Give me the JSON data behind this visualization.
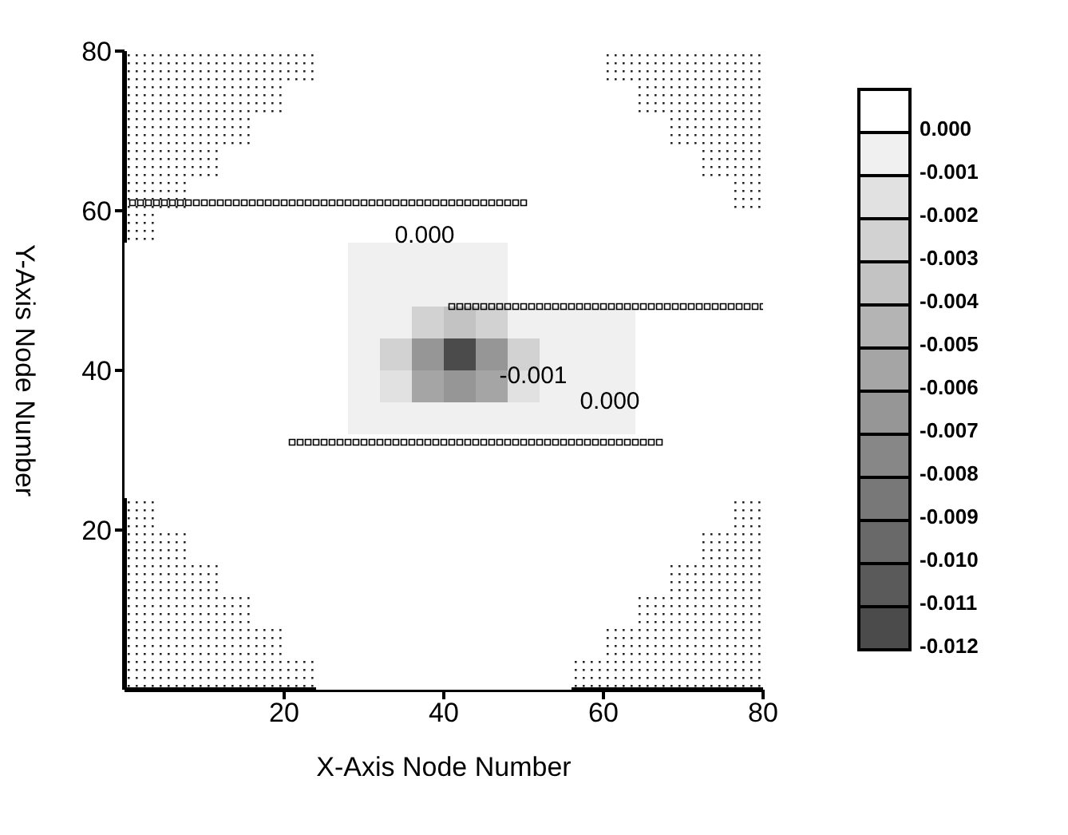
{
  "chart_data": {
    "type": "heatmap",
    "xlabel": "X-Axis Node Number",
    "ylabel": "Y-Axis Node Number",
    "xlim": [
      0,
      80
    ],
    "ylim": [
      0,
      80
    ],
    "xticks": [
      20,
      40,
      60,
      80
    ],
    "yticks": [
      20,
      40,
      60,
      80
    ],
    "clim": [
      -0.012,
      0.001
    ],
    "cticks": [
      {
        "value": 0,
        "label": "0.000"
      },
      {
        "value": -0.001,
        "label": "-0.001"
      },
      {
        "value": -0.002,
        "label": "-0.002"
      },
      {
        "value": -0.003,
        "label": "-0.003"
      },
      {
        "value": -0.004,
        "label": "-0.004"
      },
      {
        "value": -0.005,
        "label": "-0.005"
      },
      {
        "value": -0.006,
        "label": "-0.006"
      },
      {
        "value": -0.007,
        "label": "-0.007"
      },
      {
        "value": -0.008,
        "label": "-0.008"
      },
      {
        "value": -0.009,
        "label": "-0.009"
      },
      {
        "value": -0.01,
        "label": "-0.010"
      },
      {
        "value": -0.011,
        "label": "-0.011"
      },
      {
        "value": -0.012,
        "label": "-0.012"
      }
    ],
    "cells": [
      [
        null,
        null,
        null,
        null,
        null,
        null,
        0,
        0,
        0,
        0,
        0,
        0,
        0,
        0,
        0,
        null,
        null,
        null,
        null,
        null
      ],
      [
        null,
        null,
        null,
        null,
        null,
        0,
        0,
        0,
        0,
        0,
        0,
        0,
        0,
        0,
        0,
        0,
        null,
        null,
        null,
        null
      ],
      [
        null,
        null,
        null,
        null,
        0,
        0,
        0,
        0,
        0,
        0,
        0,
        0,
        0,
        0,
        0,
        0,
        0,
        null,
        null,
        null
      ],
      [
        null,
        null,
        null,
        0,
        0,
        0,
        0,
        0,
        0,
        0,
        0,
        0,
        0,
        0,
        0,
        0,
        0,
        0,
        null,
        null
      ],
      [
        null,
        null,
        0,
        0,
        0,
        0,
        0,
        0,
        0,
        0,
        0,
        0,
        0,
        0,
        0,
        0,
        0,
        0,
        0,
        null
      ],
      [
        null,
        0,
        0,
        0,
        0,
        0,
        0,
        0,
        0,
        0,
        0,
        0,
        0,
        0,
        0,
        0,
        0,
        0,
        0,
        0
      ],
      [
        0,
        0,
        0,
        0,
        0,
        0,
        0,
        -0.001,
        -0.001,
        -0.001,
        -0.001,
        -0.001,
        0,
        0,
        0,
        0,
        0,
        0,
        0,
        0
      ],
      [
        0,
        0,
        0,
        0,
        0,
        0,
        0,
        -0.001,
        -0.001,
        -0.001,
        -0.001,
        -0.001,
        0,
        0,
        0,
        0,
        0,
        0,
        0,
        0
      ],
      [
        0,
        0,
        0,
        0,
        0,
        0,
        0,
        -0.001,
        -0.001,
        -0.003,
        -0.004,
        -0.003,
        -0.001,
        -0.001,
        -0.001,
        -0.001,
        0,
        0,
        0,
        0
      ],
      [
        0,
        0,
        0,
        0,
        0,
        0,
        0,
        -0.001,
        -0.003,
        -0.007,
        -0.012,
        -0.007,
        -0.003,
        -0.001,
        -0.001,
        -0.001,
        0,
        0,
        0,
        0
      ],
      [
        0,
        0,
        0,
        0,
        0,
        0,
        0,
        -0.001,
        -0.002,
        -0.006,
        -0.007,
        -0.006,
        -0.002,
        -0.001,
        -0.001,
        -0.001,
        0,
        0,
        0,
        0
      ],
      [
        0,
        0,
        0,
        0,
        0,
        0,
        0,
        -0.001,
        -0.001,
        -0.001,
        -0.001,
        -0.001,
        -0.001,
        -0.001,
        -0.001,
        -0.001,
        0,
        0,
        0,
        0
      ],
      [
        0,
        0,
        0,
        0,
        0,
        0,
        0,
        0,
        0,
        0,
        0,
        0,
        0,
        0,
        0,
        0,
        0,
        0,
        0,
        0
      ],
      [
        0,
        0,
        0,
        0,
        0,
        0,
        0,
        0,
        0,
        0,
        0,
        0,
        0,
        0,
        0,
        0,
        0,
        0,
        0,
        0
      ],
      [
        null,
        0,
        0,
        0,
        0,
        0,
        0,
        0,
        0,
        0,
        0,
        0,
        0,
        0,
        0,
        0,
        0,
        0,
        0,
        null
      ],
      [
        null,
        null,
        0,
        0,
        0,
        0,
        0,
        0,
        0,
        0,
        0,
        0,
        0,
        0,
        0,
        0,
        0,
        0,
        null,
        null
      ],
      [
        null,
        null,
        null,
        0,
        0,
        0,
        0,
        0,
        0,
        0,
        0,
        0,
        0,
        0,
        0,
        0,
        0,
        null,
        null,
        null
      ],
      [
        null,
        null,
        null,
        null,
        0,
        0,
        0,
        0,
        0,
        0,
        0,
        0,
        0,
        0,
        0,
        0,
        null,
        null,
        null,
        null
      ],
      [
        null,
        null,
        null,
        null,
        null,
        0,
        0,
        0,
        0,
        0,
        0,
        0,
        0,
        0,
        0,
        null,
        null,
        null,
        null,
        null
      ],
      [
        null,
        null,
        null,
        null,
        null,
        null,
        0,
        0,
        0,
        0,
        0,
        0,
        0,
        0,
        null,
        null,
        null,
        null,
        null,
        null
      ]
    ],
    "marker": "square",
    "series": [
      {
        "type": "scatter",
        "color": "#000000",
        "x": [
          1,
          2,
          3,
          4,
          5,
          6,
          7,
          8,
          9,
          10,
          11,
          12,
          13,
          14,
          15,
          16,
          17,
          18,
          19,
          20,
          21,
          22,
          23,
          24,
          25,
          26,
          27,
          28,
          29,
          30,
          31,
          32,
          33,
          34,
          35,
          36,
          37,
          38,
          39,
          40,
          41,
          42,
          43,
          44,
          45,
          46,
          47,
          48,
          49,
          50
        ],
        "values": [
          61,
          61,
          61,
          61,
          61,
          61,
          61,
          61,
          61,
          61,
          61,
          61,
          61,
          61,
          61,
          61,
          61,
          61,
          61,
          61,
          61,
          61,
          61,
          61,
          61,
          61,
          61,
          61,
          61,
          61,
          61,
          61,
          61,
          61,
          61,
          61,
          61,
          61,
          61,
          61,
          61,
          61,
          61,
          61,
          61,
          61,
          61,
          61,
          61,
          61
        ]
      },
      {
        "type": "scatter",
        "color": "#000000",
        "x": [
          41,
          42,
          43,
          44,
          45,
          46,
          47,
          48,
          49,
          50,
          51,
          52,
          53,
          54,
          55,
          56,
          57,
          58,
          59,
          60,
          61,
          62,
          63,
          64,
          65,
          66,
          67,
          68,
          69,
          70,
          71,
          72,
          73,
          74,
          75,
          76,
          77,
          78,
          79,
          80
        ],
        "values": [
          48,
          48,
          48,
          48,
          48,
          48,
          48,
          48,
          48,
          48,
          48,
          48,
          48,
          48,
          48,
          48,
          48,
          48,
          48,
          48,
          48,
          48,
          48,
          48,
          48,
          48,
          48,
          48,
          48,
          48,
          48,
          48,
          48,
          48,
          48,
          48,
          48,
          48,
          48,
          48
        ]
      },
      {
        "type": "scatter",
        "color": "#000000",
        "x": [
          21,
          22,
          23,
          24,
          25,
          26,
          27,
          28,
          29,
          30,
          31,
          32,
          33,
          34,
          35,
          36,
          37,
          38,
          39,
          40,
          41,
          42,
          43,
          44,
          45,
          46,
          47,
          48,
          49,
          50,
          51,
          52,
          53,
          54,
          55,
          56,
          57,
          58,
          59,
          60,
          61,
          62,
          63,
          64,
          65,
          66,
          67
        ],
        "values": [
          31,
          31,
          31,
          31,
          31,
          31,
          31,
          31,
          31,
          31,
          31,
          31,
          31,
          31,
          31,
          31,
          31,
          31,
          31,
          31,
          31,
          31,
          31,
          31,
          31,
          31,
          31,
          31,
          31,
          31,
          31,
          31,
          31,
          31,
          31,
          31,
          31,
          31,
          31,
          31,
          31,
          31,
          31,
          31,
          31,
          31,
          31
        ]
      }
    ],
    "annotations": [
      "0.000",
      "-0.001",
      "0.000"
    ]
  }
}
